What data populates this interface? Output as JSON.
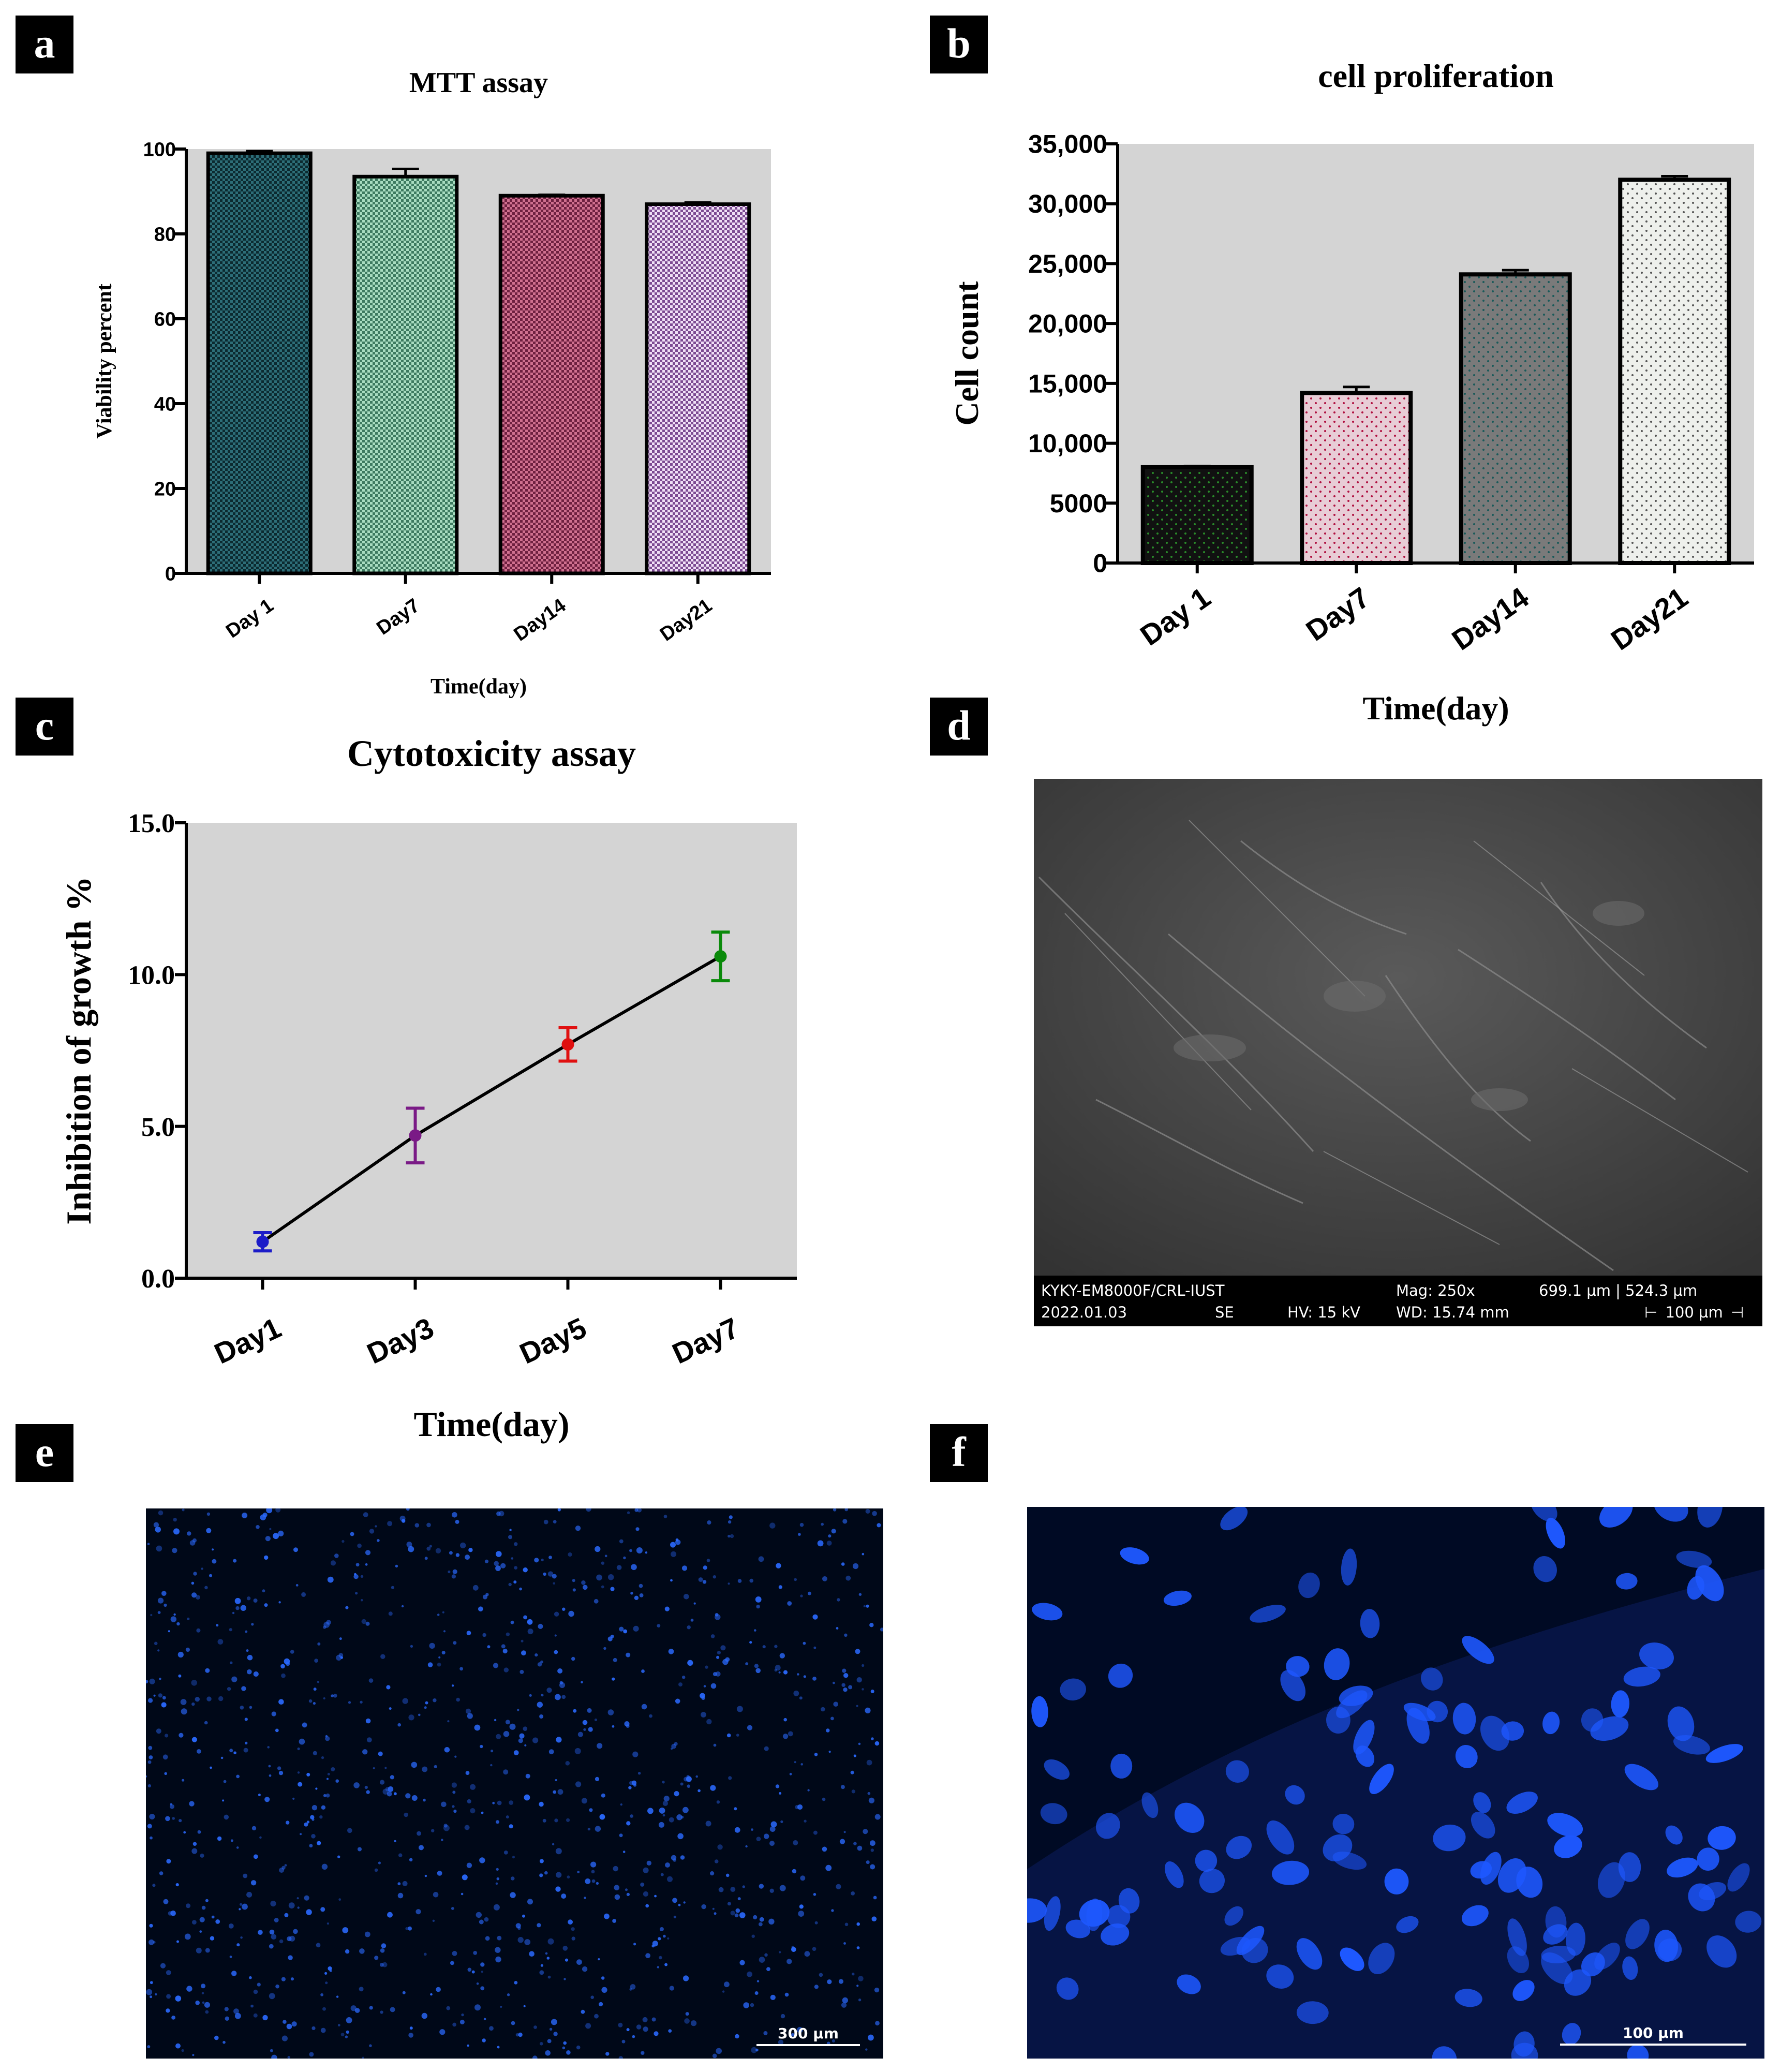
{
  "panel_letters": [
    "a",
    "b",
    "c",
    "d",
    "e",
    "f"
  ],
  "colors": {
    "plot_bg": "#d4d4d4",
    "mtt_bars": [
      "#1b4d55",
      "#7fbf9f",
      "#b04a72",
      "#caa8d6"
    ],
    "prolif_bars": [
      "#1a1a1a",
      "#e6c9d2",
      "#777777",
      "#e8ece8"
    ],
    "cyto_points": [
      "#1c1cc8",
      "#7a1a86",
      "#e01010",
      "#0a8a0a"
    ],
    "fluor_blue": "#1f5cff"
  },
  "chart_data": [
    {
      "id": "a",
      "type": "bar",
      "title": "MTT assay",
      "xlabel": "Time(day)",
      "ylabel": "Viability percent",
      "categories": [
        "Day 1",
        "Day7",
        "Day14",
        "Day21"
      ],
      "values": [
        99,
        93.5,
        89,
        87
      ],
      "errors": [
        0.5,
        1.8,
        0.2,
        0.4
      ],
      "ylim": [
        0,
        100
      ],
      "yticks": [
        "0",
        "20",
        "40",
        "60",
        "80",
        "100"
      ],
      "grid": false
    },
    {
      "id": "b",
      "type": "bar",
      "title": "cell proliferation",
      "xlabel": "Time(day)",
      "ylabel": "Cell count",
      "categories": [
        "Day 1",
        "Day7",
        "Day14",
        "Day21"
      ],
      "values": [
        8000,
        14200,
        24100,
        32000
      ],
      "errors": [
        100,
        500,
        350,
        300
      ],
      "ylim": [
        0,
        35000
      ],
      "yticks": [
        "0",
        "5000",
        "10,000",
        "15,000",
        "20,000",
        "25,000",
        "30,000",
        "35,000"
      ],
      "grid": false
    },
    {
      "id": "c",
      "type": "line",
      "title": "Cytotoxicity assay",
      "xlabel": "Time(day)",
      "ylabel": "Inhibition of growth %",
      "categories": [
        "Day1",
        "Day3",
        "Day5",
        "Day7"
      ],
      "values": [
        1.2,
        4.7,
        7.7,
        10.6
      ],
      "errors": [
        0.3,
        0.9,
        0.55,
        0.8
      ],
      "ylim": [
        0,
        15
      ],
      "yticks": [
        "0.0",
        "5.0",
        "10.0",
        "15.0"
      ],
      "grid": false
    }
  ],
  "sem": {
    "instrument": "KYKY-EM8000F/CRL-IUST",
    "date": "2022.01.03",
    "detector": "SE",
    "hv": "HV: 15 kV",
    "mag": "Mag: 250x",
    "wd": "WD: 15.74 mm",
    "field": "699.1 µm | 524.3 µm",
    "scale": "100 µm"
  },
  "fluor_e": {
    "scale": "300 µm"
  },
  "fluor_f": {
    "scale": "100 µm"
  }
}
